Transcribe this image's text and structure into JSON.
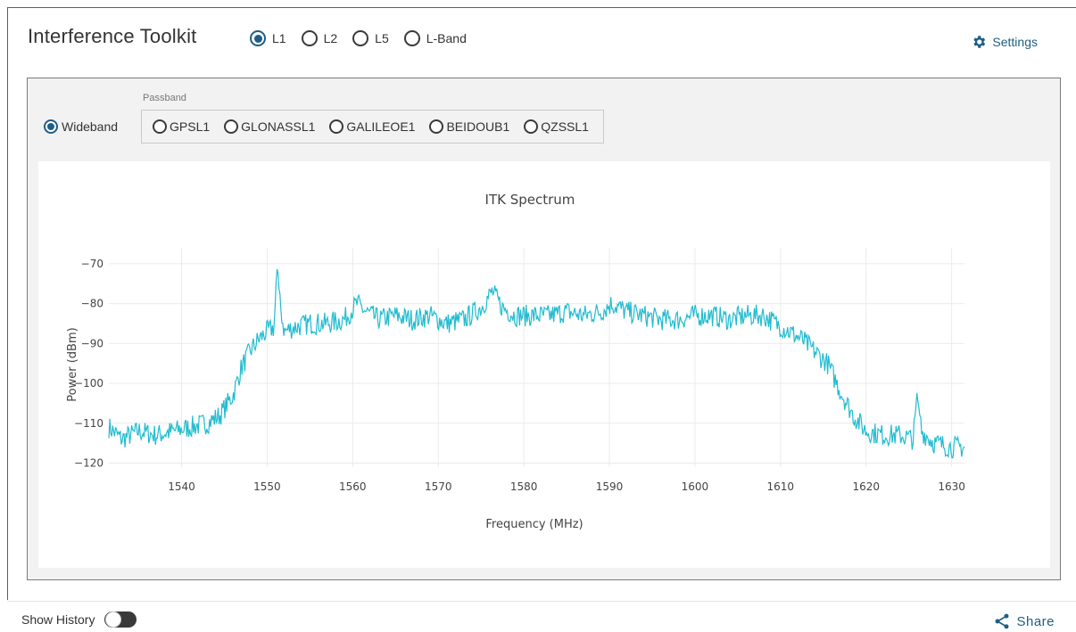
{
  "header": {
    "title": "Interference Toolkit",
    "bands": [
      {
        "label": "L1",
        "checked": true
      },
      {
        "label": "L2",
        "checked": false
      },
      {
        "label": "L5",
        "checked": false
      },
      {
        "label": "L-Band",
        "checked": false
      }
    ],
    "settings_label": "Settings",
    "settings_icon": "gear-icon"
  },
  "filters": {
    "wideband_label": "Wideband",
    "wideband_checked": true,
    "passband_label": "Passband",
    "passband_options": [
      {
        "label": "GPSL1",
        "checked": false
      },
      {
        "label": "GLONASSL1",
        "checked": false
      },
      {
        "label": "GALILEOE1",
        "checked": false
      },
      {
        "label": "BEIDOUB1",
        "checked": false
      },
      {
        "label": "QZSSL1",
        "checked": false
      }
    ]
  },
  "footer": {
    "show_history_label": "Show History",
    "show_history_on": false,
    "share_label": "Share",
    "share_icon": "share-icon"
  },
  "colors": {
    "accent": "#1f5e85",
    "trace": "#22bcd0",
    "panel_bg": "#f2f2f2"
  },
  "chart_data": {
    "type": "line",
    "title": "ITK Spectrum",
    "xlabel": "Frequency (MHz)",
    "ylabel": "Power (dBm)",
    "xlim": [
      1531.5,
      1631.5
    ],
    "ylim": [
      -121,
      -66
    ],
    "xticks": [
      1540,
      1550,
      1560,
      1570,
      1580,
      1590,
      1600,
      1610,
      1620,
      1630
    ],
    "yticks": [
      -70,
      -80,
      -90,
      -100,
      -110,
      -120
    ],
    "grid": true,
    "series": [
      {
        "x": [
          1531.5,
          1533,
          1535,
          1537,
          1539,
          1541,
          1543,
          1544.5,
          1546,
          1547,
          1548,
          1549,
          1550,
          1550.8,
          1551.2,
          1551.5,
          1552,
          1553,
          1555,
          1557,
          1559,
          1560.5,
          1561.5,
          1563,
          1565,
          1567,
          1569,
          1571,
          1573,
          1575,
          1576.3,
          1577.5,
          1579,
          1581,
          1583,
          1585,
          1587,
          1589,
          1590.3,
          1592,
          1594,
          1596,
          1598,
          1600,
          1602,
          1604,
          1606,
          1608,
          1609.5,
          1611,
          1612.5,
          1614,
          1615.5,
          1617,
          1618.5,
          1620,
          1622,
          1624,
          1625.5,
          1626,
          1626.5,
          1628,
          1630,
          1631.5
        ],
        "values": [
          -111,
          -114,
          -112,
          -113,
          -112,
          -111,
          -110,
          -108,
          -103,
          -96,
          -92,
          -89,
          -87,
          -86,
          -70,
          -80,
          -87,
          -86,
          -85,
          -85,
          -84,
          -80,
          -82,
          -84,
          -83,
          -84,
          -83,
          -85,
          -84,
          -81,
          -77,
          -81,
          -83,
          -83,
          -83,
          -82,
          -83,
          -82,
          -80,
          -82,
          -83,
          -84,
          -84,
          -83,
          -83,
          -84,
          -83,
          -83,
          -85,
          -87,
          -89,
          -92,
          -95,
          -102,
          -108,
          -112,
          -113,
          -113,
          -114,
          -103,
          -112,
          -115,
          -116,
          -116
        ]
      }
    ]
  }
}
